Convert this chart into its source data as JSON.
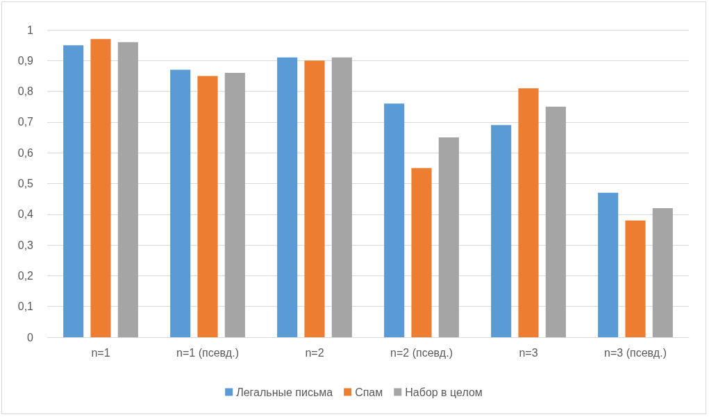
{
  "chart_data": {
    "type": "bar",
    "categories": [
      "n=1",
      "n=1 (псевд.)",
      "n=2",
      "n=2 (псевд.)",
      "n=3",
      "n=3 (псевд.)"
    ],
    "series": [
      {
        "name": "Легальные письма",
        "color": "#5b9bd5",
        "values": [
          0.95,
          0.87,
          0.91,
          0.76,
          0.69,
          0.47
        ]
      },
      {
        "name": "Спам",
        "color": "#ed7d31",
        "values": [
          0.97,
          0.85,
          0.9,
          0.55,
          0.81,
          0.38
        ]
      },
      {
        "name": "Набор в целом",
        "color": "#a5a5a5",
        "values": [
          0.96,
          0.86,
          0.91,
          0.65,
          0.75,
          0.42
        ]
      }
    ],
    "ylim": [
      0,
      1
    ],
    "yticks": [
      {
        "value": 0,
        "label": "0"
      },
      {
        "value": 0.1,
        "label": "0,1"
      },
      {
        "value": 0.2,
        "label": "0,2"
      },
      {
        "value": 0.3,
        "label": "0,3"
      },
      {
        "value": 0.4,
        "label": "0,4"
      },
      {
        "value": 0.5,
        "label": "0,5"
      },
      {
        "value": 0.6,
        "label": "0,6"
      },
      {
        "value": 0.7,
        "label": "0,7"
      },
      {
        "value": 0.8,
        "label": "0,8"
      },
      {
        "value": 0.9,
        "label": "0,9"
      },
      {
        "value": 1,
        "label": "1"
      }
    ],
    "grid": "y",
    "legend": "bottom"
  }
}
